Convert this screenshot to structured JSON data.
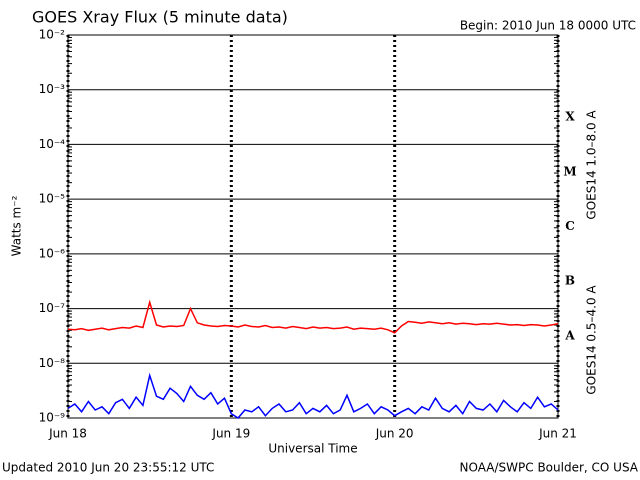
{
  "chart_data": {
    "type": "line",
    "title": "GOES Xray Flux (5 minute data)",
    "subtitle": "Begin:  2010 Jun 18 0000 UTC",
    "ylabel": "Watts m⁻²",
    "xlabel": "Universal Time",
    "footer_left": "Updated 2010 Jun 20 23:55:12 UTC",
    "footer_right": "NOAA/SWPC Boulder, CO USA",
    "log_y": true,
    "grid": true,
    "xlim": [
      0,
      72
    ],
    "xticks": [
      {
        "value": 0,
        "label": "Jun 18"
      },
      {
        "value": 24,
        "label": "Jun 19"
      },
      {
        "value": 48,
        "label": "Jun 20"
      },
      {
        "value": 72,
        "label": "Jun 21"
      }
    ],
    "ylim": [
      1e-09,
      0.01
    ],
    "yticks": [
      {
        "value": 1e-09,
        "label": "10⁻⁹"
      },
      {
        "value": 1e-08,
        "label": "10⁻⁸"
      },
      {
        "value": 1e-07,
        "label": "10⁻⁷"
      },
      {
        "value": 1e-06,
        "label": "10⁻⁶"
      },
      {
        "value": 1e-05,
        "label": "10⁻⁵"
      },
      {
        "value": 0.0001,
        "label": "10⁻⁴"
      },
      {
        "value": 0.001,
        "label": "10⁻³"
      },
      {
        "value": 0.01,
        "label": "10⁻²"
      }
    ],
    "flare_classes": [
      {
        "value": 1e-08,
        "label": "A"
      },
      {
        "value": 1e-07,
        "label": "B"
      },
      {
        "value": 1e-06,
        "label": "C"
      },
      {
        "value": 1e-05,
        "label": "M"
      },
      {
        "value": 0.0001,
        "label": "X"
      }
    ],
    "x": [
      0,
      1,
      2,
      3,
      4,
      5,
      6,
      7,
      8,
      9,
      10,
      11,
      12,
      13,
      14,
      15,
      16,
      17,
      18,
      19,
      20,
      21,
      22,
      23,
      24,
      25,
      26,
      27,
      28,
      29,
      30,
      31,
      32,
      33,
      34,
      35,
      36,
      37,
      38,
      39,
      40,
      41,
      42,
      43,
      44,
      45,
      46,
      47,
      48,
      49,
      50,
      51,
      52,
      53,
      54,
      55,
      56,
      57,
      58,
      59,
      60,
      61,
      62,
      63,
      64,
      65,
      66,
      67,
      68,
      69,
      70,
      71,
      72
    ],
    "series": [
      {
        "name": "GOES14 1.0–8.0 A",
        "color": "#ff0000",
        "values": [
          4.2e-08,
          4.1e-08,
          4.3e-08,
          4e-08,
          4.2e-08,
          4.4e-08,
          4.1e-08,
          4.3e-08,
          4.5e-08,
          4.4e-08,
          4.8e-08,
          4.5e-08,
          1.3e-07,
          5e-08,
          4.6e-08,
          4.8e-08,
          4.7e-08,
          4.9e-08,
          1e-07,
          5.5e-08,
          5e-08,
          4.8e-08,
          4.7e-08,
          4.9e-08,
          4.8e-08,
          4.6e-08,
          5e-08,
          4.7e-08,
          4.6e-08,
          4.9e-08,
          4.5e-08,
          4.6e-08,
          4.4e-08,
          4.7e-08,
          4.5e-08,
          4.3e-08,
          4.6e-08,
          4.4e-08,
          4.5e-08,
          4.3e-08,
          4.4e-08,
          4.6e-08,
          4.2e-08,
          4.4e-08,
          4.3e-08,
          4.2e-08,
          4.4e-08,
          4.1e-08,
          3.6e-08,
          4.8e-08,
          5.8e-08,
          5.6e-08,
          5.4e-08,
          5.7e-08,
          5.5e-08,
          5.3e-08,
          5.5e-08,
          5.2e-08,
          5.4e-08,
          5.3e-08,
          5.1e-08,
          5.3e-08,
          5.2e-08,
          5.4e-08,
          5.2e-08,
          5e-08,
          5.1e-08,
          4.9e-08,
          5.1e-08,
          5e-08,
          4.8e-08,
          5e-08,
          5.3e-08
        ]
      },
      {
        "name": "GOES14 0.5–4.0 A",
        "color": "#0000ff",
        "values": [
          1.5e-09,
          1.8e-09,
          1.3e-09,
          2e-09,
          1.4e-09,
          1.6e-09,
          1.2e-09,
          1.9e-09,
          2.2e-09,
          1.5e-09,
          2.4e-09,
          1.7e-09,
          6e-09,
          2.5e-09,
          2.2e-09,
          3.5e-09,
          2.8e-09,
          2e-09,
          3.8e-09,
          2.6e-09,
          2.2e-09,
          2.9e-09,
          1.8e-09,
          2.3e-09,
          1.2e-09,
          1e-09,
          1.4e-09,
          1.3e-09,
          1.6e-09,
          1.1e-09,
          1.5e-09,
          1.8e-09,
          1.3e-09,
          1.4e-09,
          1.9e-09,
          1.2e-09,
          1.5e-09,
          1.3e-09,
          1.7e-09,
          1.2e-09,
          1.4e-09,
          2.6e-09,
          1.3e-09,
          1.5e-09,
          1.8e-09,
          1.2e-09,
          1.6e-09,
          1.4e-09,
          1.1e-09,
          1.3e-09,
          1.5e-09,
          1.2e-09,
          1.6e-09,
          1.4e-09,
          2.3e-09,
          1.5e-09,
          1.3e-09,
          1.7e-09,
          1.2e-09,
          2e-09,
          1.5e-09,
          1.4e-09,
          1.8e-09,
          1.3e-09,
          2.1e-09,
          1.6e-09,
          1.3e-09,
          1.9e-09,
          1.5e-09,
          2.4e-09,
          1.6e-09,
          1.8e-09,
          1.4e-09
        ]
      }
    ]
  }
}
